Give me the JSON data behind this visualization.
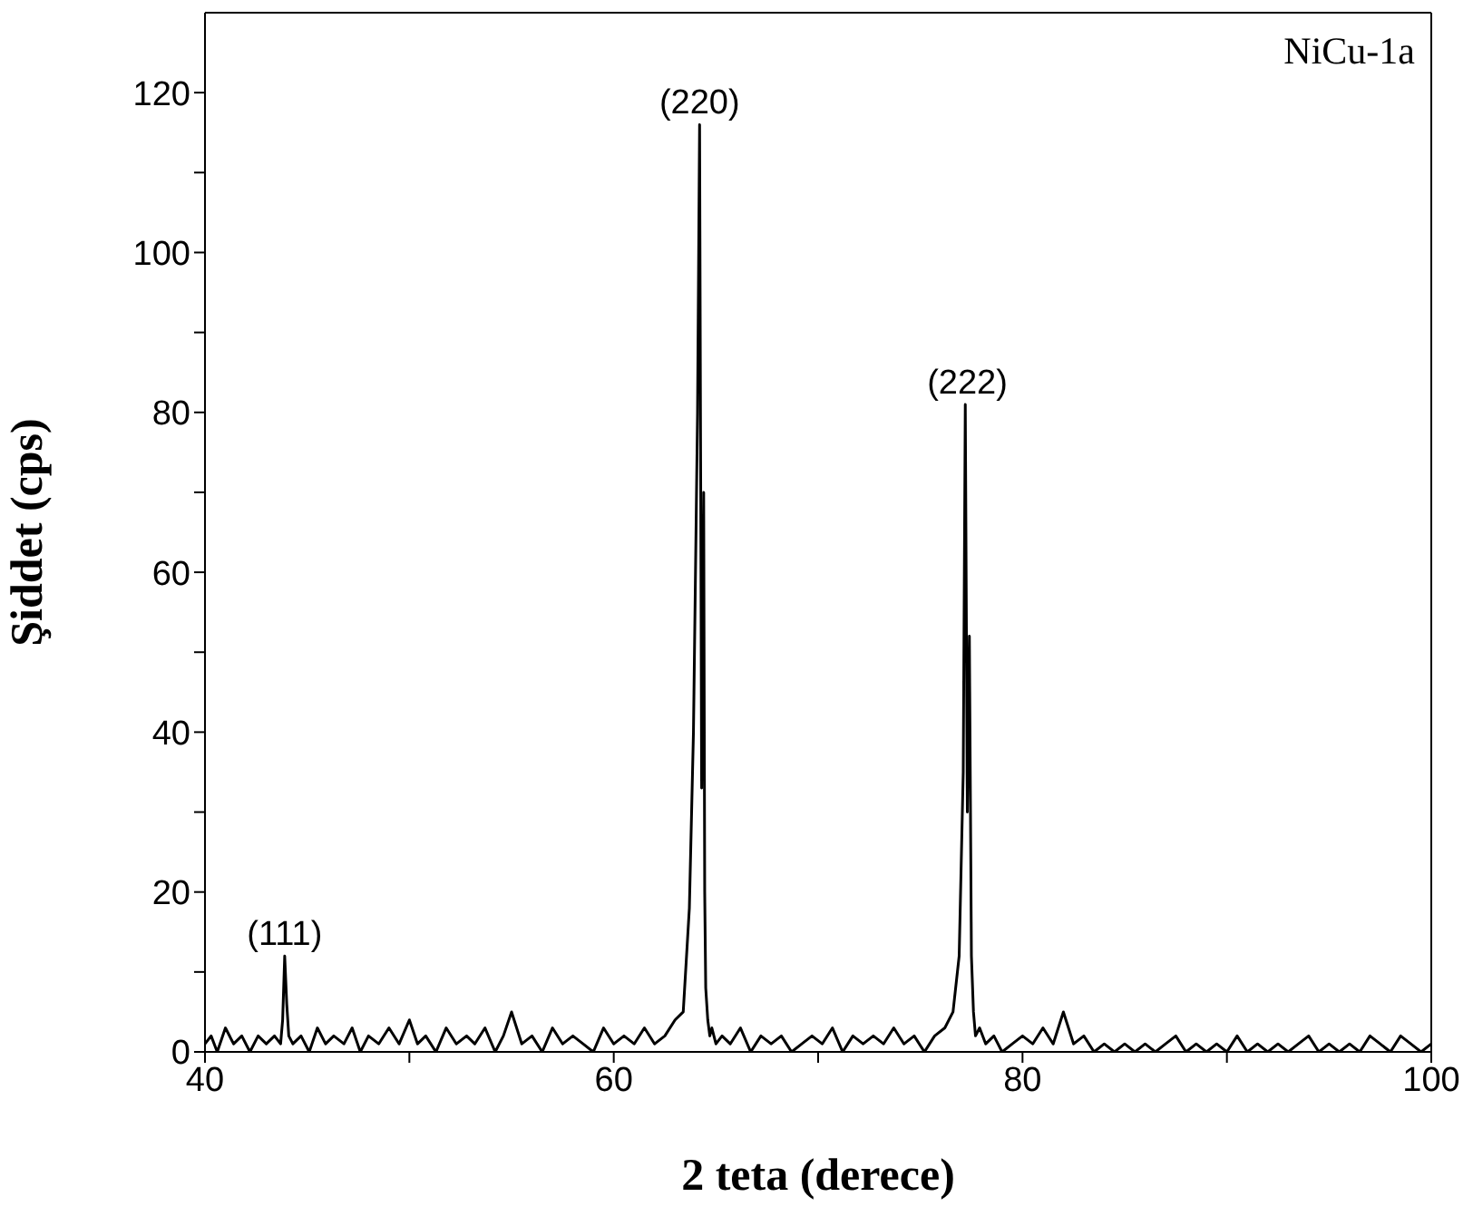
{
  "chart_data": {
    "type": "line",
    "xlabel": "2 teta (derece)",
    "ylabel": "Şiddet (cps)",
    "x": [
      40,
      40.3,
      40.6,
      41,
      41.4,
      41.8,
      42.2,
      42.6,
      43,
      43.4,
      43.7,
      43.8,
      43.9,
      44,
      44.1,
      44.3,
      44.7,
      45.1,
      45.5,
      45.9,
      46.3,
      46.8,
      47.2,
      47.6,
      48,
      48.5,
      49,
      49.5,
      50,
      50.4,
      50.8,
      51.3,
      51.8,
      52.3,
      52.8,
      53.2,
      53.7,
      54.2,
      54.6,
      55,
      55.5,
      56,
      56.5,
      57,
      57.5,
      58,
      58.5,
      59,
      59.5,
      60,
      60.5,
      61,
      61.5,
      62,
      62.5,
      63,
      63.4,
      63.7,
      63.9,
      64.1,
      64.2,
      64.3,
      64.4,
      64.45,
      64.5,
      64.6,
      64.7,
      64.8,
      65,
      65.3,
      65.7,
      66.2,
      66.7,
      67.2,
      67.7,
      68.2,
      68.7,
      69.2,
      69.7,
      70.2,
      70.7,
      71.2,
      71.7,
      72.2,
      72.7,
      73.2,
      73.7,
      74.2,
      74.7,
      75.2,
      75.7,
      76.2,
      76.6,
      76.9,
      77.1,
      77.2,
      77.3,
      77.4,
      77.5,
      77.6,
      77.7,
      77.9,
      78.2,
      78.6,
      79,
      79.5,
      80,
      80.5,
      81,
      81.5,
      82,
      82.5,
      83,
      83.5,
      84,
      84.5,
      85,
      85.5,
      86,
      86.5,
      87,
      87.5,
      88,
      88.5,
      89,
      89.5,
      90,
      90.5,
      91,
      91.5,
      92,
      92.5,
      93,
      93.5,
      94,
      94.5,
      95,
      95.5,
      96,
      96.5,
      97,
      97.5,
      98,
      98.5,
      99,
      99.5,
      100
    ],
    "values": [
      1,
      2,
      0,
      3,
      1,
      2,
      0,
      2,
      1,
      2,
      1,
      4,
      12,
      6,
      2,
      1,
      2,
      0,
      3,
      1,
      2,
      1,
      3,
      0,
      2,
      1,
      3,
      1,
      4,
      1,
      2,
      0,
      3,
      1,
      2,
      1,
      3,
      0,
      2,
      5,
      1,
      2,
      0,
      3,
      1,
      2,
      1,
      0,
      3,
      1,
      2,
      1,
      3,
      1,
      2,
      4,
      5,
      18,
      40,
      80,
      116,
      33,
      70,
      20,
      8,
      4,
      2,
      3,
      1,
      2,
      1,
      3,
      0,
      2,
      1,
      2,
      0,
      1,
      2,
      1,
      3,
      0,
      2,
      1,
      2,
      1,
      3,
      1,
      2,
      0,
      2,
      3,
      5,
      12,
      35,
      81,
      30,
      52,
      12,
      5,
      2,
      3,
      1,
      2,
      0,
      1,
      2,
      1,
      3,
      1,
      5,
      1,
      2,
      0,
      1,
      0,
      1,
      0,
      1,
      0,
      1,
      2,
      0,
      1,
      0,
      1,
      0,
      2,
      0,
      1,
      0,
      1,
      0,
      1,
      2,
      0,
      1,
      0,
      1,
      0,
      2,
      1,
      0,
      2,
      1,
      0,
      1
    ],
    "color": "#000000",
    "marker": "none",
    "line_style": "solid",
    "grid": false,
    "xlim": [
      40,
      100
    ],
    "xticks": [
      40,
      {
        "value": 50,
        "label": null
      },
      60,
      {
        "value": 70,
        "label": null
      },
      80,
      {
        "value": 90,
        "label": null
      },
      100
    ],
    "ylim": [
      0,
      130
    ],
    "yticks": [
      0,
      {
        "value": 10,
        "label": null
      },
      20,
      {
        "value": 30,
        "label": null
      },
      40,
      {
        "value": 50,
        "label": null
      },
      60,
      {
        "value": 70,
        "label": null
      },
      80,
      {
        "value": 90,
        "label": null
      },
      100,
      {
        "value": 110,
        "label": null
      },
      120
    ],
    "annotations": [
      {
        "text": "(111)",
        "x": 43.9,
        "y": 12
      },
      {
        "text": "(220)",
        "x": 64.2,
        "y": 116
      },
      {
        "text": "(222)",
        "x": 77.3,
        "y": 81
      },
      "NiCu-1a"
    ]
  }
}
